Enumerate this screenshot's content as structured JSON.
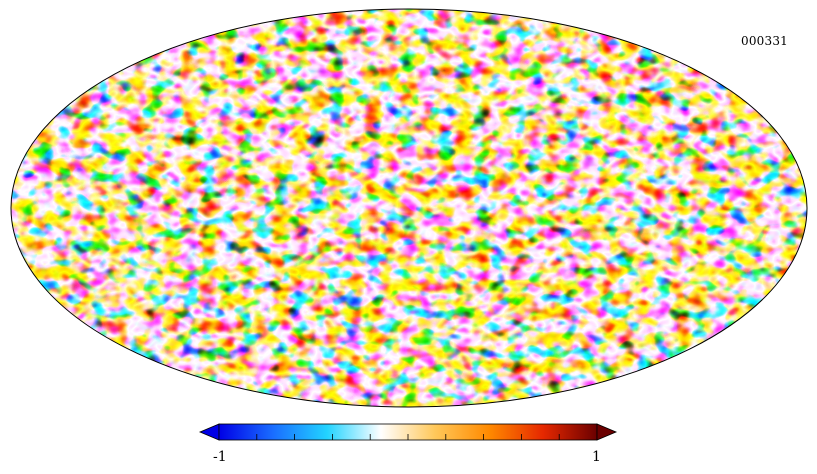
{
  "map": {
    "id_label": "000331",
    "projection": "mollweide",
    "field": "random-gaussian-field"
  },
  "colorbar": {
    "min_label": "-1",
    "max_label": "1",
    "stops": [
      "#0000e6",
      "#1a6dff",
      "#22d3ff",
      "#ffffff",
      "#ffc85a",
      "#ff8a00",
      "#e62800",
      "#6b0000"
    ],
    "tick_count": 9,
    "extend": "both"
  },
  "colors": {
    "outline": "#000000",
    "background": "#ffffff"
  }
}
